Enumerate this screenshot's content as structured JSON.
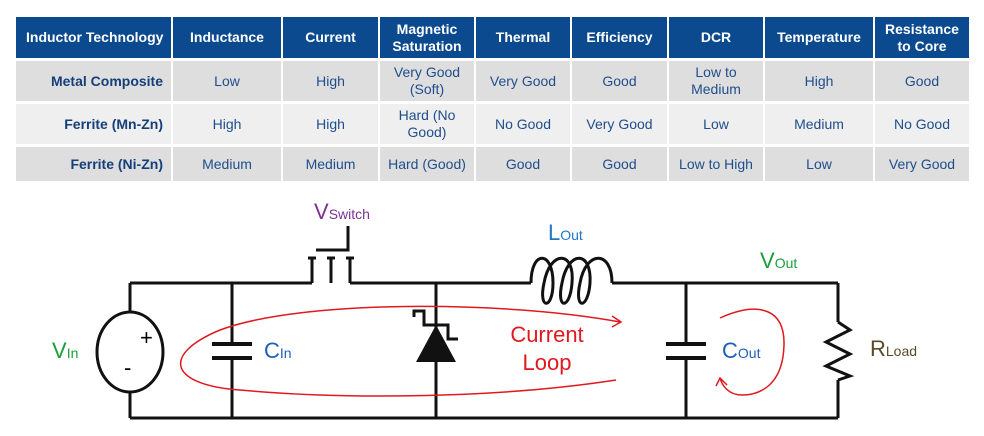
{
  "table": {
    "headers": [
      "Inductor Technology",
      "Inductance",
      "Current",
      "Magnetic Saturation",
      "Thermal",
      "Efficiency",
      "DCR",
      "Temperature",
      "Resistance to Core"
    ],
    "rows": [
      [
        "Metal Composite",
        "Low",
        "High",
        "Very Good (Soft)",
        "Very Good",
        "Good",
        "Low to Medium",
        "High",
        "Good"
      ],
      [
        "Ferrite (Mn-Zn)",
        "High",
        "High",
        "Hard (No Good)",
        "No Good",
        "Very Good",
        "Low",
        "Medium",
        "No Good"
      ],
      [
        "Ferrite (Ni-Zn)",
        "Medium",
        "Medium",
        "Hard (Good)",
        "Good",
        "Good",
        "Low to High",
        "Low",
        "Very Good"
      ]
    ]
  },
  "circuit": {
    "v_switch": {
      "main": "V",
      "sub": "Switch"
    },
    "l_out": {
      "main": "L",
      "sub": "Out"
    },
    "v_out": {
      "main": "V",
      "sub": "Out"
    },
    "v_in": {
      "main": "V",
      "sub": "In"
    },
    "c_in": {
      "main": "C",
      "sub": "In"
    },
    "c_out": {
      "main": "C",
      "sub": "Out"
    },
    "r_load": {
      "main": "R",
      "sub": "Load"
    },
    "plus": "+",
    "minus": "-",
    "loop_line1": "Current",
    "loop_line2": "Loop",
    "colors": {
      "table_header": "#0b4a8f",
      "loop": "#e0191f",
      "v_switch": "#7b3294",
      "l_out": "#1f77c8",
      "v_out": "#1a9e3a",
      "v_in": "#1a9e3a",
      "c": "#1f5fb8",
      "r_load": "#5a4a2a"
    }
  }
}
